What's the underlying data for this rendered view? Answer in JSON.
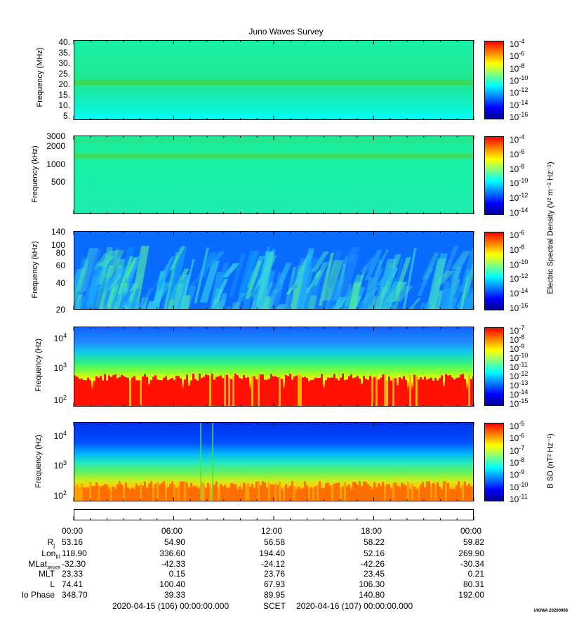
{
  "chart_data": {
    "title": "Juno Waves Survey",
    "type": "heatmap",
    "panels": [
      {
        "ylabel": "Frequency (MHz)",
        "yticks": [
          "40.",
          "35.",
          "30.",
          "25.",
          "20.",
          "15.",
          "10.",
          "5."
        ],
        "colorbar_labels": [
          "10-4",
          "10-6",
          "10-8",
          "10-10",
          "10-12",
          "10-14",
          "10-16"
        ],
        "colorbar_range": [
          "1e-4",
          "1e-16"
        ]
      },
      {
        "ylabel": "Frequency (kHz)",
        "yticks": [
          "3000",
          "2000",
          "1000",
          "500"
        ],
        "colorbar_labels": [
          "10-4",
          "10-6",
          "10-8",
          "10-10",
          "10-12",
          "10-14"
        ],
        "colorbar_range": [
          "1e-4",
          "1e-14"
        ]
      },
      {
        "ylabel": "Frequency (kHz)",
        "yticks": [
          "140",
          "100",
          "80",
          "60",
          "40",
          "20"
        ],
        "colorbar_labels": [
          "10-6",
          "10-8",
          "10-10",
          "10-12",
          "10-14",
          "10-16"
        ],
        "colorbar_range": [
          "1e-6",
          "1e-16"
        ]
      },
      {
        "ylabel": "Frequency (Hz)",
        "yticks": [
          "10^4",
          "10^3",
          "10^2"
        ],
        "colorbar_labels": [
          "10-7",
          "10-8",
          "10-9",
          "10-10",
          "10-11",
          "10-12",
          "10-13",
          "10-14",
          "10-15"
        ],
        "colorbar_range": [
          "1e-7",
          "1e-15"
        ]
      },
      {
        "ylabel": "Frequency (Hz)",
        "yticks": [
          "10^4",
          "10^3",
          "10^2"
        ],
        "colorbar_labels": [
          "10-5",
          "10-6",
          "10-7",
          "10-8",
          "10-9",
          "10-10",
          "10-11"
        ],
        "colorbar_range": [
          "1e-5",
          "1e-11"
        ]
      }
    ],
    "colorbar_titles": {
      "electric": "Electric Spectral Density (V² m⁻² Hz⁻¹)",
      "magnetic": "B SD (nT² Hz⁻¹)"
    },
    "x_tick_labels": [
      "00:00",
      "06:00",
      "12:00",
      "18:00",
      "00:00"
    ],
    "ephemeris": {
      "labels": [
        "Rj",
        "LonIII",
        "MLatJRM09",
        "MLT",
        "L",
        "Io Phase"
      ],
      "rows": [
        [
          "53.16",
          "54.90",
          "56.58",
          "58.22",
          "59.82"
        ],
        [
          "118.90",
          "336.60",
          "194.40",
          "52.16",
          "269.90"
        ],
        [
          "-32.30",
          "-42.33",
          "-24.12",
          "-42.26",
          "-30.34"
        ],
        [
          "23.33",
          "0.15",
          "23.76",
          "23.45",
          "0.21"
        ],
        [
          "74.41",
          "100.40",
          "67.93",
          "106.30",
          "80.31"
        ],
        [
          "348.70",
          "39.33",
          "89.95",
          "140.80",
          "192.00"
        ]
      ]
    }
  },
  "footer": {
    "start": "2020-04-15 (106) 00:00:00.000",
    "scet": "SCET",
    "end": "2020-04-16 (107) 00:00:00.000"
  },
  "stamp": "UIOWA 20200908",
  "colors": {
    "jet": [
      "#00008f",
      "#0000ff",
      "#0080ff",
      "#00ffff",
      "#80ff80",
      "#ffff00",
      "#ff8000",
      "#ff0000",
      "#800000"
    ]
  }
}
